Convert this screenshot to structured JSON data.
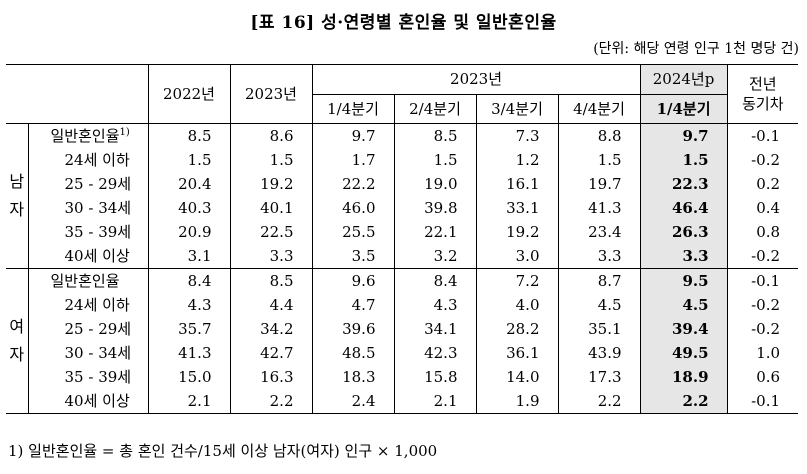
{
  "title": "[표 16] 성·연령별 혼인율 및 일반혼인율",
  "unit": "(단위: 해당 연령 인구 1천 명당 건)",
  "header": {
    "y2022": "2022년",
    "y2023": "2023년",
    "y2023_group": "2023년",
    "y2024p": "2024년p",
    "yoy": "전년\n동기차",
    "q1": "1/4분기",
    "q2": "2/4분기",
    "q3": "3/4분기",
    "q4": "4/4분기",
    "q1_2024": "1/4분기"
  },
  "footnote_mark": "1)",
  "sections": [
    {
      "gender": "남\n자",
      "rows": [
        {
          "label": "일반혼인율",
          "values": [
            "8.5",
            "8.6",
            "9.7",
            "8.5",
            "7.3",
            "8.8",
            "9.7",
            "-0.1"
          ]
        },
        {
          "label": "24세 이하",
          "values": [
            "1.5",
            "1.5",
            "1.7",
            "1.5",
            "1.2",
            "1.5",
            "1.5",
            "-0.2"
          ]
        },
        {
          "label": "25 - 29세",
          "values": [
            "20.4",
            "19.2",
            "22.2",
            "19.0",
            "16.1",
            "19.7",
            "22.3",
            "0.2"
          ]
        },
        {
          "label": "30 - 34세",
          "values": [
            "40.3",
            "40.1",
            "46.0",
            "39.8",
            "33.1",
            "41.3",
            "46.4",
            "0.4"
          ]
        },
        {
          "label": "35 - 39세",
          "values": [
            "20.9",
            "22.5",
            "25.5",
            "22.1",
            "19.2",
            "23.4",
            "26.3",
            "0.8"
          ]
        },
        {
          "label": "40세 이상",
          "values": [
            "3.1",
            "3.3",
            "3.5",
            "3.2",
            "3.0",
            "3.3",
            "3.3",
            "-0.2"
          ]
        }
      ]
    },
    {
      "gender": "여\n자",
      "rows": [
        {
          "label": "일반혼인율",
          "values": [
            "8.4",
            "8.5",
            "9.6",
            "8.4",
            "7.2",
            "8.7",
            "9.5",
            "-0.1"
          ]
        },
        {
          "label": "24세 이하",
          "values": [
            "4.3",
            "4.4",
            "4.7",
            "4.3",
            "4.0",
            "4.5",
            "4.5",
            "-0.2"
          ]
        },
        {
          "label": "25 - 29세",
          "values": [
            "35.7",
            "34.2",
            "39.6",
            "34.1",
            "28.2",
            "35.1",
            "39.4",
            "-0.2"
          ]
        },
        {
          "label": "30 - 34세",
          "values": [
            "41.3",
            "42.7",
            "48.5",
            "42.3",
            "36.1",
            "43.9",
            "49.5",
            "1.0"
          ]
        },
        {
          "label": "35 - 39세",
          "values": [
            "15.0",
            "16.3",
            "18.3",
            "15.8",
            "14.0",
            "17.3",
            "18.9",
            "0.6"
          ]
        },
        {
          "label": "40세 이상",
          "values": [
            "2.1",
            "2.2",
            "2.4",
            "2.1",
            "1.9",
            "2.2",
            "2.2",
            "-0.1"
          ]
        }
      ]
    }
  ],
  "footnote": "1) 일반혼인율 = 총 혼인 건수/15세 이상 남자(여자) 인구 × 1,000"
}
